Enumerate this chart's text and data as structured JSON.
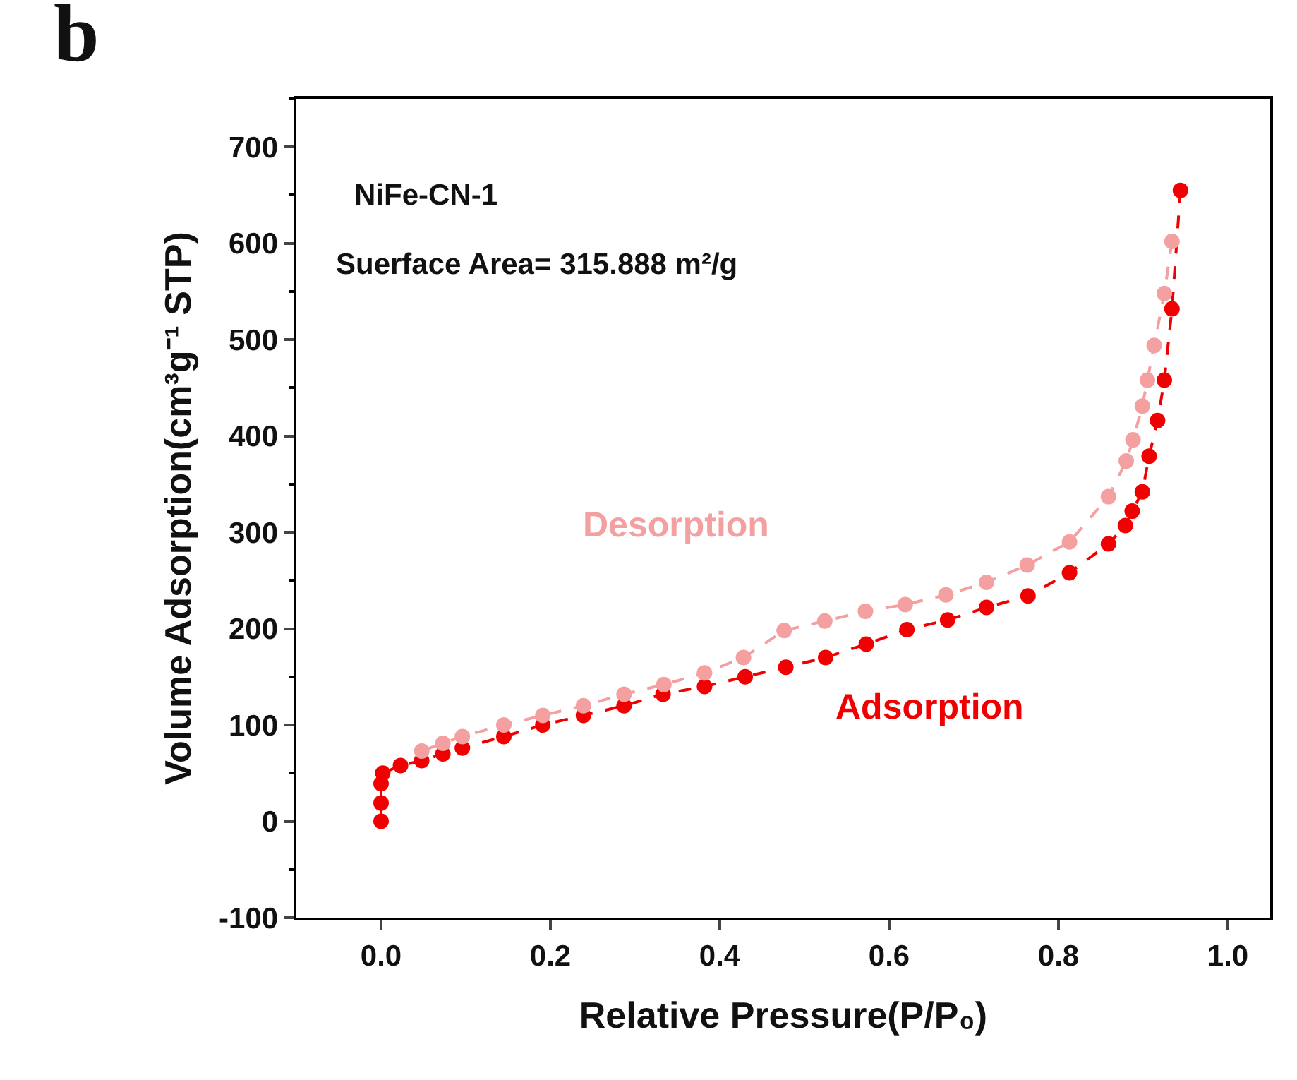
{
  "chart_data": {
    "type": "line",
    "xlabel": "Relative Pressure(P/P₀)",
    "ylabel": "Volume Adsorption(cm³g⁻¹ STP)",
    "annotations": [
      "b",
      "NiFe-CN-1",
      "Suerface Area= 315.888 m²/g"
    ],
    "xlim": [
      -0.1,
      1.05
    ],
    "xticks": [
      {
        "value": 0,
        "label": "0.0"
      },
      0.2,
      0.4,
      0.6,
      0.8,
      {
        "value": 1,
        "label": "1.0"
      }
    ],
    "ylim": [
      -100,
      750
    ],
    "yticks": [
      -100,
      0,
      100,
      200,
      300,
      400,
      500,
      600,
      700
    ],
    "grid": false,
    "legend": false,
    "marker": "circle",
    "line_style": "dashed",
    "series": [
      {
        "name": "Adsorption",
        "color": "#f00000",
        "x": [
          0.0,
          0.0,
          0.0,
          0.002,
          0.023,
          0.048,
          0.073,
          0.096,
          0.145,
          0.191,
          0.239,
          0.287,
          0.333,
          0.382,
          0.43,
          0.478,
          0.525,
          0.573,
          0.621,
          0.669,
          0.715,
          0.764,
          0.813,
          0.859,
          0.879,
          0.887,
          0.899,
          0.907,
          0.917,
          0.925,
          0.934,
          0.944
        ],
        "values": [
          0,
          19,
          39,
          50,
          58,
          63,
          70,
          76,
          88,
          100,
          110,
          120,
          132,
          140,
          150,
          160,
          170,
          184,
          199,
          209,
          222,
          234,
          258,
          288,
          307,
          322,
          342,
          379,
          416,
          458,
          532,
          655
        ]
      },
      {
        "name": "Desorption",
        "color": "#f4a0a0",
        "x": [
          0.934,
          0.925,
          0.913,
          0.905,
          0.899,
          0.888,
          0.88,
          0.859,
          0.813,
          0.763,
          0.715,
          0.667,
          0.619,
          0.572,
          0.524,
          0.476,
          0.428,
          0.382,
          0.334,
          0.287,
          0.239,
          0.191,
          0.145,
          0.096,
          0.073,
          0.048
        ],
        "values": [
          602,
          548,
          494,
          458,
          431,
          396,
          374,
          337,
          290,
          266,
          248,
          235,
          225,
          218,
          208,
          198,
          170,
          154,
          142,
          132,
          120,
          110,
          100,
          88,
          81,
          73
        ]
      }
    ]
  }
}
